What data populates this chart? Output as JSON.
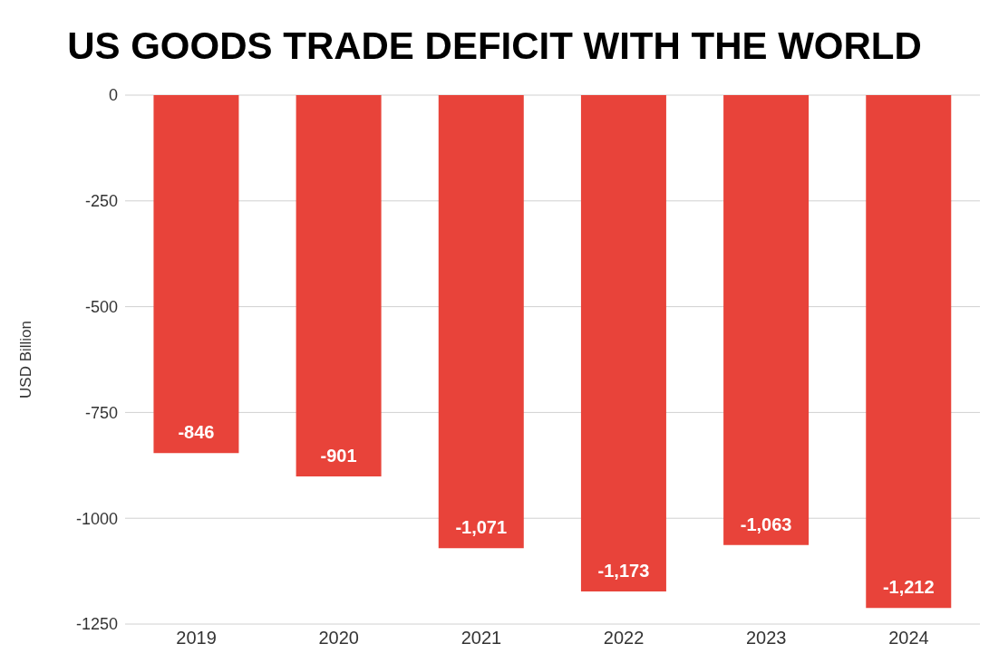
{
  "chart_data": {
    "type": "bar",
    "title": "US GOODS TRADE DEFICIT WITH THE WORLD",
    "ylabel": "USD Billion",
    "categories": [
      "2019",
      "2020",
      "2021",
      "2022",
      "2023",
      "2024"
    ],
    "values": [
      -846,
      -901,
      -1071,
      -1173,
      -1063,
      -1212
    ],
    "value_labels": [
      "-846",
      "-901",
      "-1,071",
      "-1,173",
      "-1,063",
      "-1,212"
    ],
    "color": "#e8433a",
    "ylim": [
      -1250,
      0
    ],
    "yticks": [
      0,
      -250,
      -500,
      -750,
      -1000,
      -1250
    ],
    "grid": "y"
  }
}
